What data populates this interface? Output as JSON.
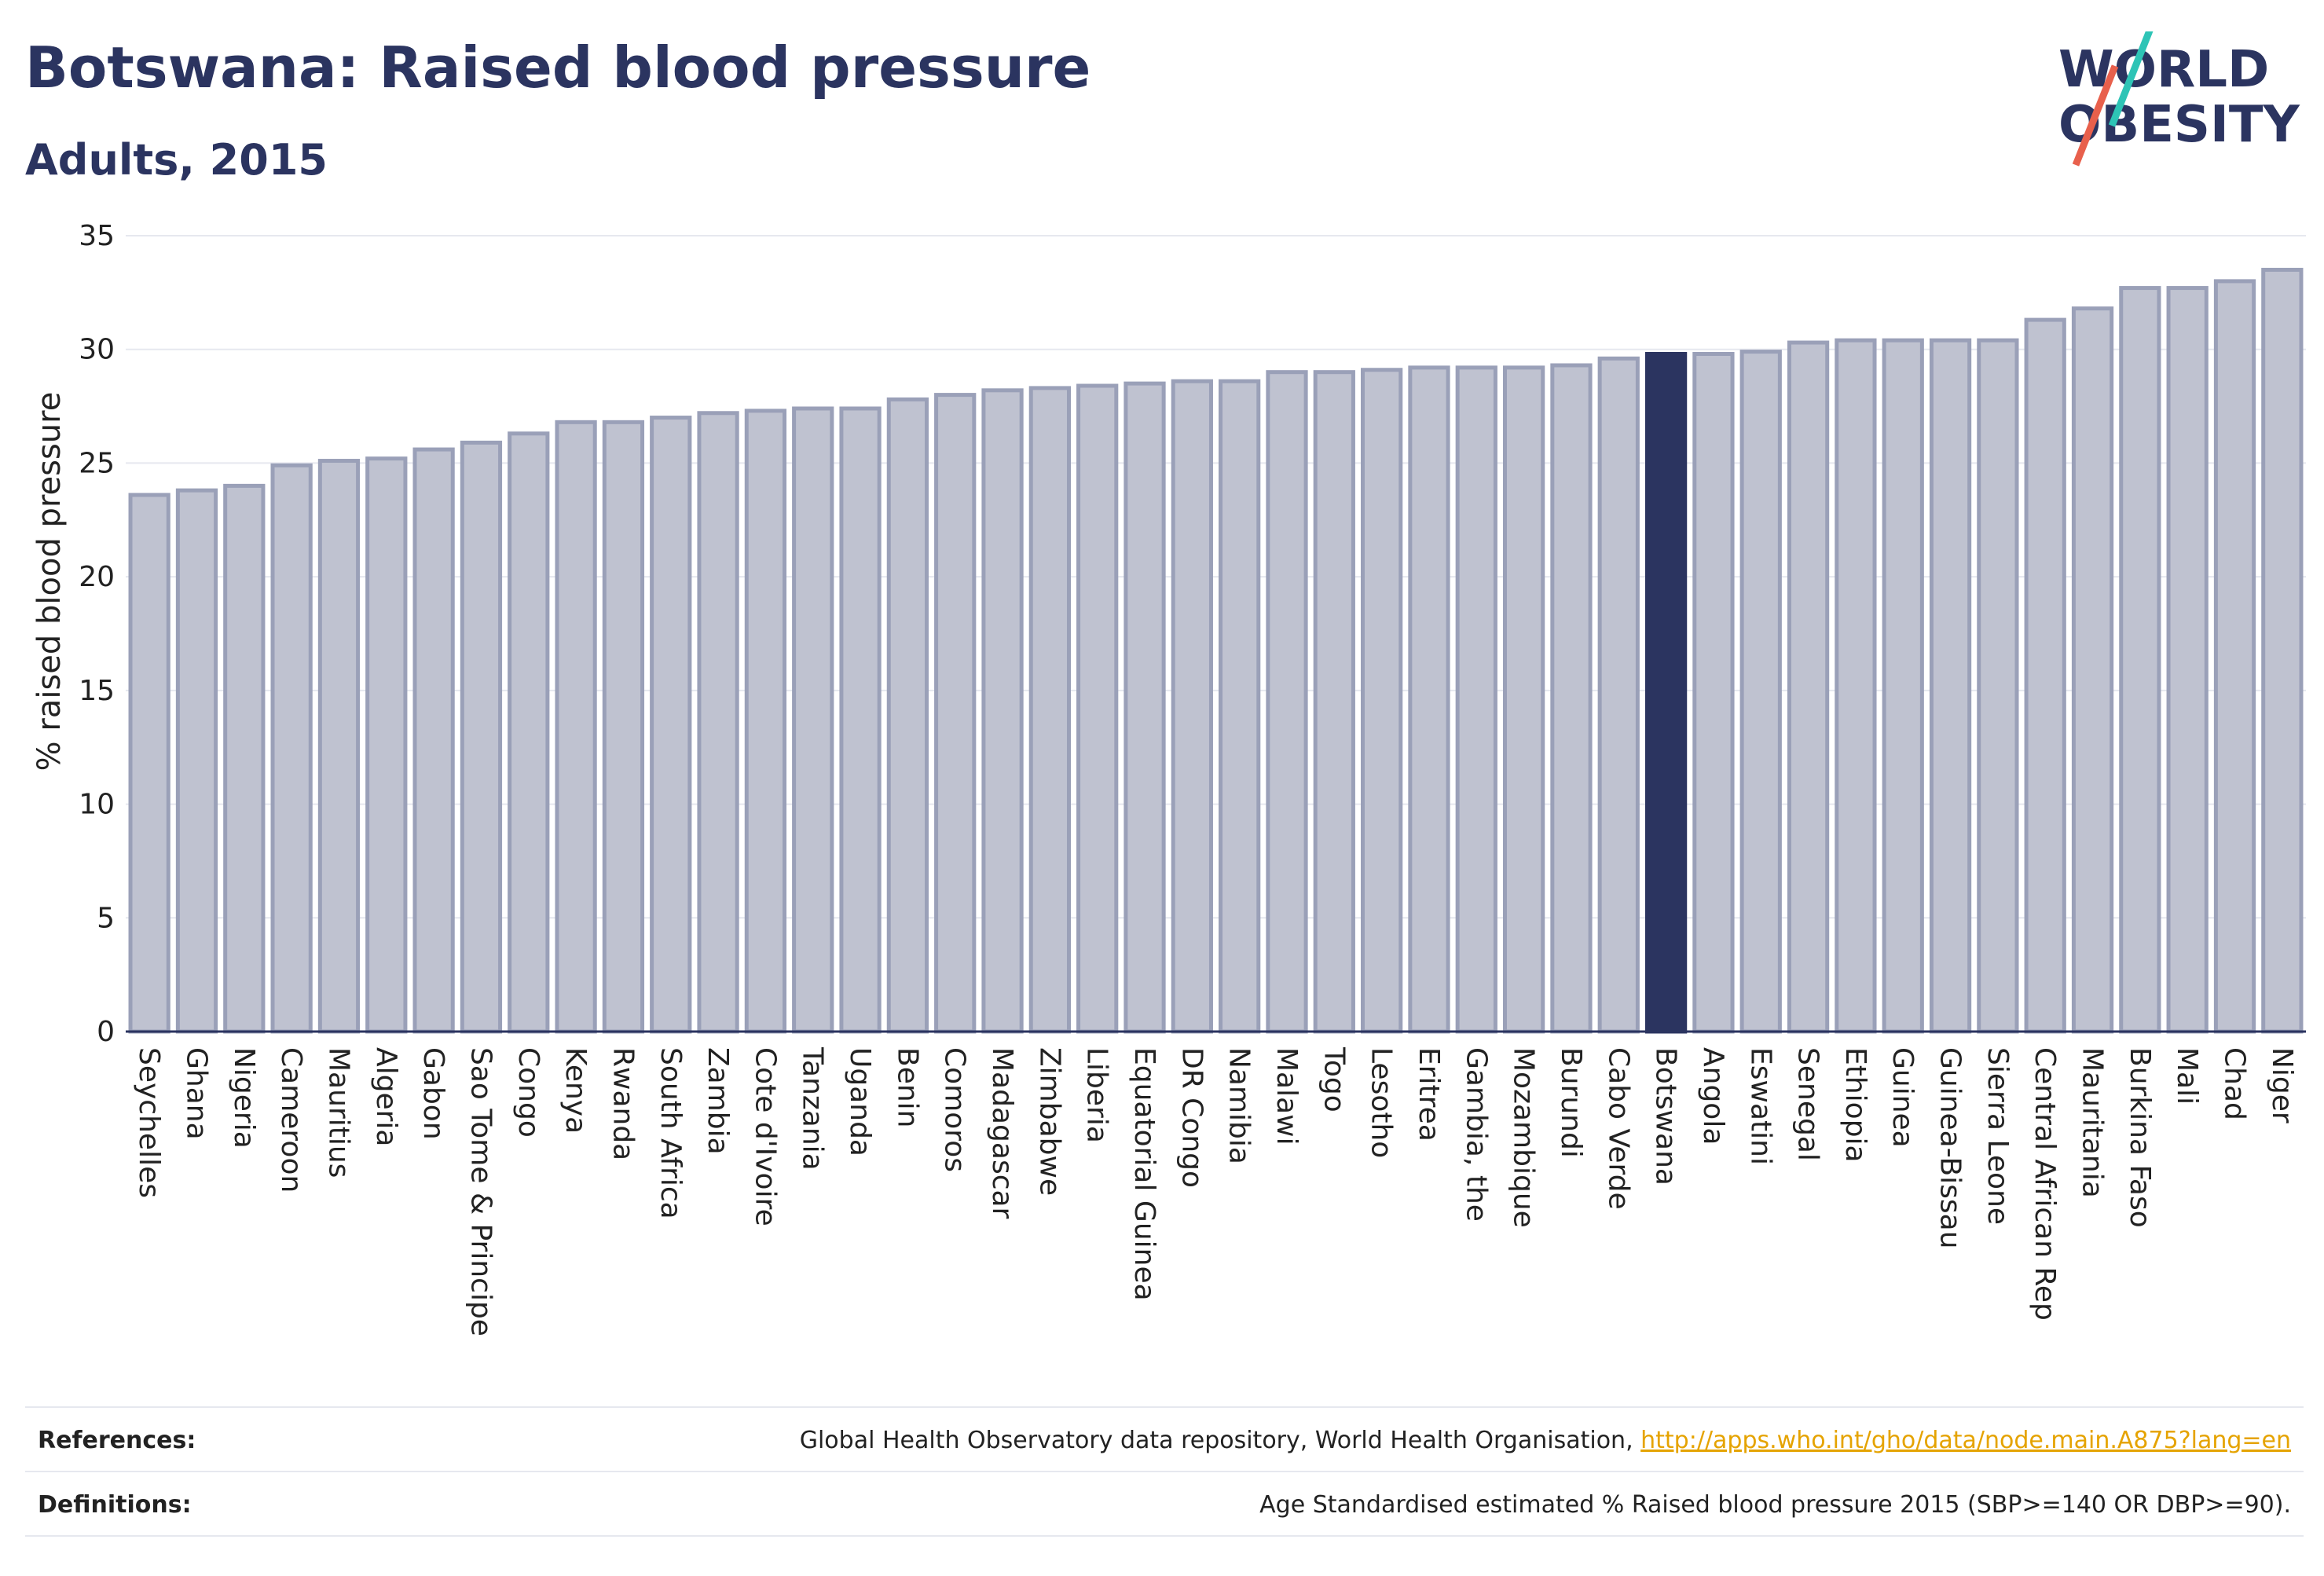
{
  "title": "Botswana: Raised blood pressure",
  "subtitle": "Adults, 2015",
  "logo": {
    "line1": "WORLD",
    "line2": "OBESITY",
    "slash_colors": [
      "#2ec4b6",
      "#e8604c"
    ]
  },
  "colors": {
    "bar": "#bfc2d0",
    "bar_stroke": "#9aa0b8",
    "highlight": "#2b3460",
    "grid": "#e6e8ef",
    "axis": "#2b3460"
  },
  "chart_data": {
    "type": "bar",
    "ylabel": "% raised blood pressure",
    "ylim": [
      0,
      35
    ],
    "yticks": [
      0,
      5,
      10,
      15,
      20,
      25,
      30,
      35
    ],
    "grid": true,
    "highlight": "Botswana",
    "categories": [
      "Seychelles",
      "Ghana",
      "Nigeria",
      "Cameroon",
      "Mauritius",
      "Algeria",
      "Gabon",
      "Sao Tome & Principe",
      "Congo",
      "Kenya",
      "Rwanda",
      "South Africa",
      "Zambia",
      "Cote d'Ivoire",
      "Tanzania",
      "Uganda",
      "Benin",
      "Comoros",
      "Madagascar",
      "Zimbabwe",
      "Liberia",
      "Equatorial Guinea",
      "DR Congo",
      "Namibia",
      "Malawi",
      "Togo",
      "Lesotho",
      "Eritrea",
      "Gambia, the",
      "Mozambique",
      "Burundi",
      "Cabo Verde",
      "Botswana",
      "Angola",
      "Eswatini",
      "Senegal",
      "Ethiopia",
      "Guinea",
      "Guinea-Bissau",
      "Sierra Leone",
      "Central African Rep",
      "Mauritania",
      "Burkina Faso",
      "Mali",
      "Chad",
      "Niger"
    ],
    "values": [
      23.6,
      23.8,
      24.0,
      24.9,
      25.1,
      25.2,
      25.6,
      25.9,
      26.3,
      26.8,
      26.8,
      27.0,
      27.2,
      27.3,
      27.4,
      27.4,
      27.8,
      28.0,
      28.2,
      28.3,
      28.4,
      28.5,
      28.6,
      28.6,
      29.0,
      29.0,
      29.1,
      29.2,
      29.2,
      29.2,
      29.3,
      29.6,
      29.8,
      29.8,
      29.9,
      30.3,
      30.4,
      30.4,
      30.4,
      30.4,
      31.3,
      31.8,
      32.7,
      32.7,
      33.0,
      33.5
    ]
  },
  "footer": {
    "references_label": "References:",
    "references_text": "Global Health Observatory data repository, World Health Organisation, ",
    "references_link": "http://apps.who.int/gho/data/node.main.A875?lang=en",
    "definitions_label": "Definitions:",
    "definitions_text": "Age Standardised estimated % Raised blood pressure 2015 (SBP>=140 OR DBP>=90)."
  }
}
